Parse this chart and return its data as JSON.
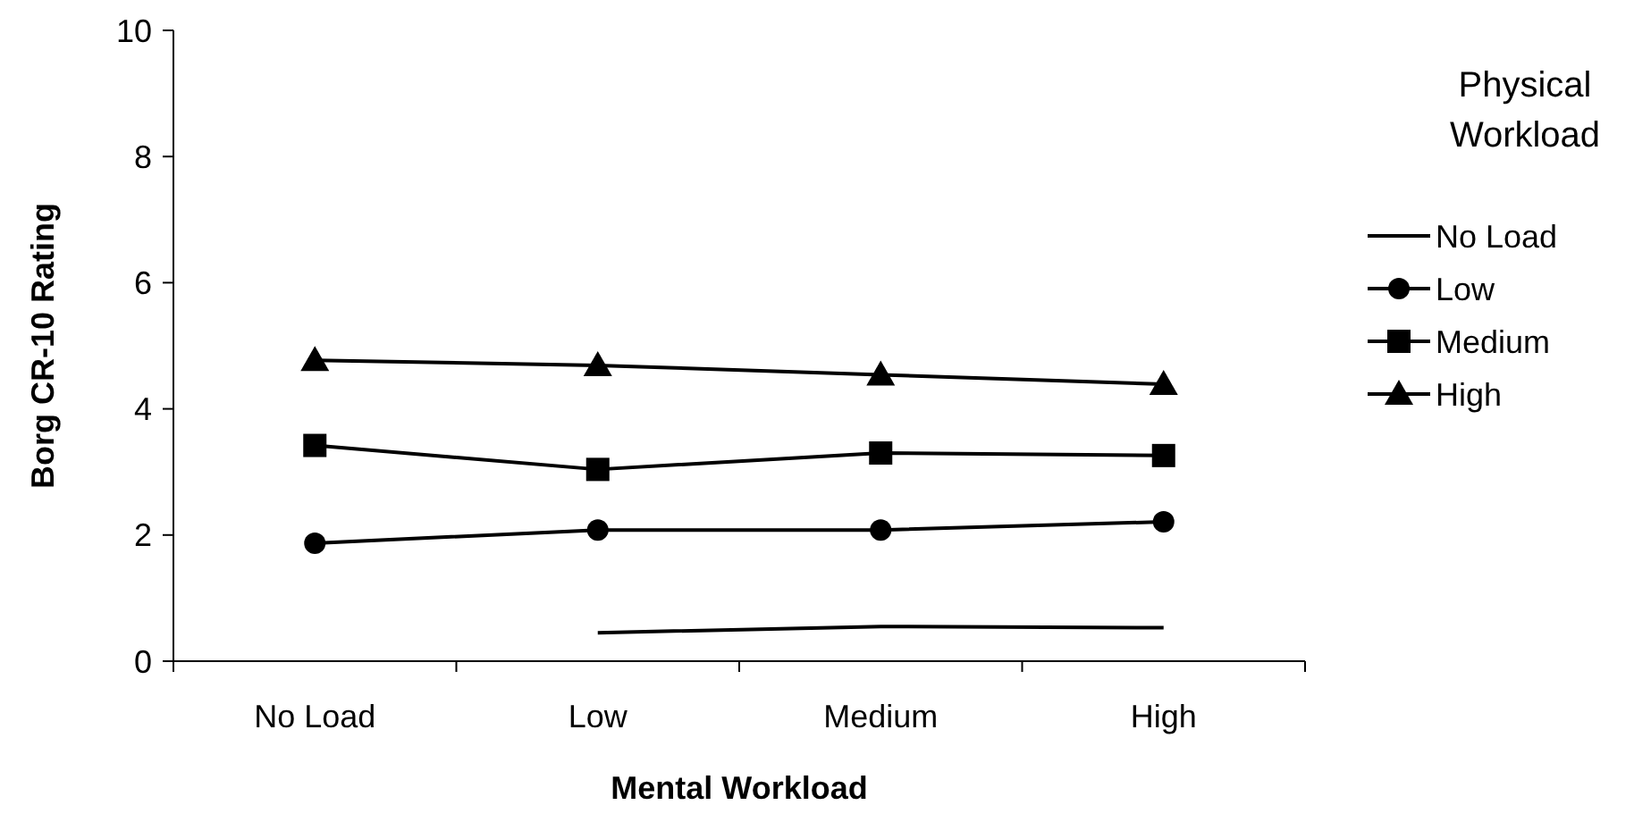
{
  "chart_data": {
    "type": "line",
    "xlabel": "Mental Workload",
    "ylabel": "Borg CR-10 Rating",
    "legend_title": "Physical Workload",
    "legend": "right",
    "categories": [
      "No Load",
      "Low",
      "Medium",
      "High"
    ],
    "ylim": [
      0,
      10
    ],
    "yticks": [
      0,
      2,
      4,
      6,
      8,
      10
    ],
    "grid": false,
    "series": [
      {
        "name": "No Load",
        "color": "#000000",
        "marker": "none",
        "values": [
          null,
          0.45,
          0.55,
          0.53
        ]
      },
      {
        "name": "Low",
        "color": "#000000",
        "marker": "circle",
        "values": [
          1.87,
          2.08,
          2.08,
          2.21
        ]
      },
      {
        "name": "Medium",
        "color": "#000000",
        "marker": "square",
        "values": [
          3.42,
          3.04,
          3.3,
          3.26
        ]
      },
      {
        "name": "High",
        "color": "#000000",
        "marker": "triangle",
        "values": [
          4.77,
          4.69,
          4.54,
          4.39
        ]
      }
    ]
  }
}
